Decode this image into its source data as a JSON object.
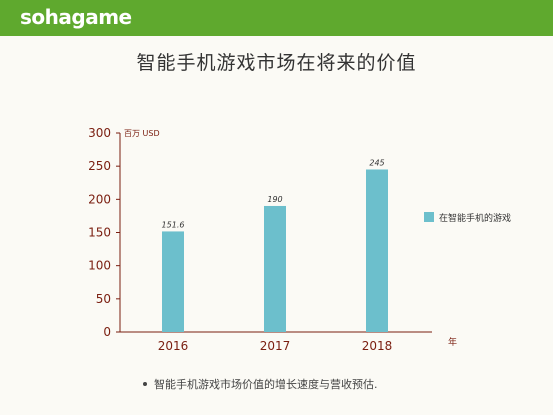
{
  "header": {
    "brand": "sohagame",
    "color": "#5fa92e"
  },
  "page_title": "智能手机游戏市场在将来的价值",
  "footnote": "智能手机游戏市场价值的增长速度与营收预估.",
  "chart_data": {
    "type": "bar",
    "title": "智能手机游戏市场在将来的价值",
    "categories": [
      "2016",
      "2017",
      "2018"
    ],
    "series": [
      {
        "name": "在智能手机的游戏",
        "values": [
          151.6,
          190,
          245
        ],
        "color": "#6cbfcc"
      }
    ],
    "data_labels": [
      "151.6",
      "190",
      "245"
    ],
    "ylabel": "百万 USD",
    "xlabel": "年",
    "ylim": [
      0,
      300
    ],
    "yticks": [
      0,
      50,
      100,
      150,
      200,
      250,
      300
    ],
    "axis_color": "#7a1e10",
    "grid": false,
    "legend_position": "right"
  }
}
